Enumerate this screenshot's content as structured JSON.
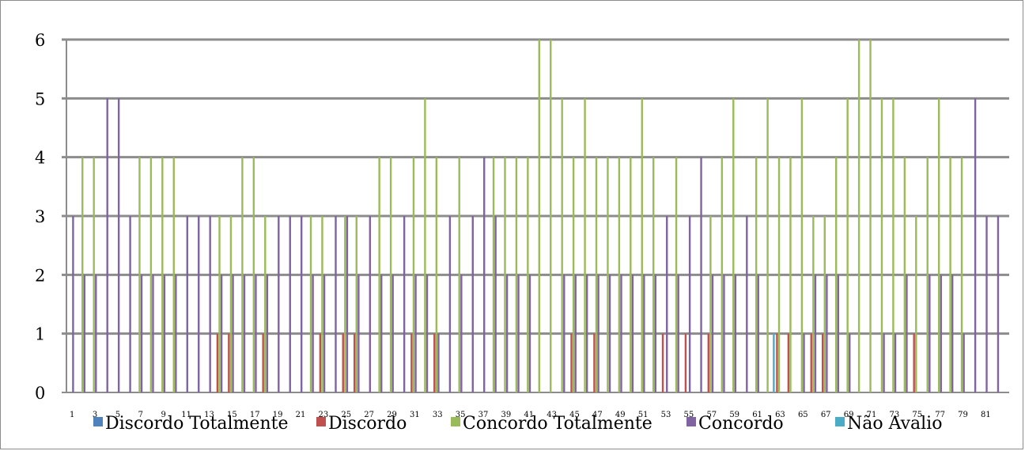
{
  "chart_data": {
    "type": "bar",
    "categories": [
      "1",
      "2",
      "3",
      "4",
      "5",
      "6",
      "7",
      "8",
      "9",
      "10",
      "11",
      "12",
      "13",
      "14",
      "15",
      "16",
      "17",
      "18",
      "19",
      "20",
      "21",
      "22",
      "23",
      "24",
      "25",
      "26",
      "27",
      "28",
      "29",
      "30",
      "31",
      "32",
      "33",
      "34",
      "35",
      "36",
      "37",
      "38",
      "39",
      "40",
      "41",
      "42",
      "43",
      "44",
      "45",
      "46",
      "47",
      "48",
      "49",
      "50",
      "51",
      "52",
      "53",
      "54",
      "55",
      "56",
      "57",
      "58",
      "59",
      "60",
      "61",
      "62",
      "63",
      "64",
      "65",
      "66",
      "67",
      "68",
      "69",
      "70",
      "71",
      "72",
      "73",
      "74",
      "75",
      "76",
      "77",
      "78",
      "79",
      "80",
      "81",
      "82"
    ],
    "x_tick_labels": [
      "1",
      "3",
      "5",
      "7",
      "9",
      "11",
      "13",
      "15",
      "17",
      "19",
      "21",
      "23",
      "25",
      "27",
      "29",
      "31",
      "33",
      "35",
      "37",
      "39",
      "41",
      "43",
      "45",
      "47",
      "49",
      "51",
      "53",
      "55",
      "57",
      "59",
      "61",
      "63",
      "65",
      "67",
      "69",
      "71",
      "73",
      "75",
      "77",
      "79",
      "81"
    ],
    "ylim": [
      0,
      6
    ],
    "y_ticks": [
      0,
      1,
      2,
      3,
      4,
      5,
      6
    ],
    "grid": true,
    "legend_position": "bottom",
    "series": [
      {
        "name": "Discordo Totalmente",
        "color": "#4f81bd",
        "values": [
          0,
          0,
          0,
          0,
          0,
          0,
          0,
          0,
          0,
          0,
          0,
          0,
          0,
          0,
          0,
          0,
          0,
          0,
          0,
          0,
          0,
          0,
          0,
          0,
          0,
          0,
          0,
          0,
          0,
          0,
          0,
          0,
          0,
          0,
          0,
          0,
          0,
          0,
          0,
          0,
          0,
          0,
          0,
          0,
          0,
          0,
          0,
          0,
          0,
          0,
          0,
          0,
          0,
          0,
          0,
          0,
          0,
          0,
          0,
          0,
          0,
          0,
          0,
          0,
          0,
          0,
          0,
          0,
          0,
          0,
          0,
          0,
          0,
          0,
          0,
          0,
          0,
          0,
          0,
          0,
          0,
          0
        ]
      },
      {
        "name": "Discordo",
        "color": "#c0504d",
        "values": [
          0,
          0,
          0,
          0,
          0,
          0,
          0,
          0,
          0,
          0,
          0,
          0,
          0,
          1,
          1,
          0,
          0,
          1,
          0,
          0,
          0,
          0,
          1,
          0,
          1,
          1,
          0,
          0,
          0,
          0,
          1,
          0,
          1,
          0,
          0,
          0,
          0,
          0,
          0,
          0,
          0,
          0,
          0,
          0,
          1,
          0,
          1,
          0,
          0,
          0,
          0,
          0,
          1,
          0,
          1,
          0,
          1,
          0,
          0,
          0,
          0,
          0,
          1,
          1,
          0,
          1,
          1,
          0,
          0,
          0,
          0,
          0,
          0,
          0,
          1,
          0,
          0,
          0,
          0,
          0,
          0,
          0
        ]
      },
      {
        "name": "Concordo Totalmente",
        "color": "#9bbb59",
        "values": [
          0,
          4,
          4,
          0,
          0,
          0,
          4,
          4,
          4,
          4,
          0,
          0,
          0,
          3,
          3,
          4,
          4,
          3,
          0,
          0,
          0,
          3,
          3,
          0,
          3,
          3,
          0,
          4,
          4,
          0,
          4,
          5,
          4,
          0,
          4,
          0,
          0,
          4,
          4,
          4,
          4,
          6,
          6,
          5,
          4,
          5,
          4,
          4,
          4,
          4,
          5,
          4,
          0,
          4,
          0,
          0,
          3,
          4,
          5,
          0,
          4,
          5,
          4,
          4,
          5,
          3,
          3,
          4,
          5,
          6,
          6,
          5,
          5,
          4,
          3,
          4,
          5,
          4,
          4,
          0,
          0,
          0
        ]
      },
      {
        "name": "Concordo",
        "color": "#8064a2",
        "values": [
          3,
          2,
          2,
          5,
          5,
          3,
          2,
          2,
          2,
          2,
          3,
          3,
          3,
          2,
          2,
          2,
          2,
          2,
          3,
          3,
          3,
          2,
          2,
          3,
          3,
          2,
          3,
          2,
          2,
          3,
          2,
          2,
          1,
          3,
          2,
          3,
          4,
          3,
          2,
          2,
          2,
          0,
          0,
          2,
          2,
          2,
          2,
          2,
          2,
          2,
          2,
          2,
          3,
          2,
          3,
          4,
          2,
          2,
          2,
          3,
          2,
          0,
          0,
          0,
          1,
          2,
          2,
          2,
          1,
          0,
          0,
          1,
          1,
          2,
          0,
          2,
          2,
          2,
          1,
          5,
          3,
          3
        ]
      },
      {
        "name": "Não Avalio",
        "color": "#4bacc6",
        "values": [
          0,
          0,
          0,
          0,
          0,
          0,
          0,
          0,
          0,
          0,
          0,
          0,
          0,
          0,
          0,
          0,
          0,
          0,
          0,
          0,
          0,
          0,
          0,
          0,
          0,
          0,
          0,
          0,
          0,
          0,
          0,
          0,
          0,
          0,
          0,
          0,
          0,
          0,
          0,
          0,
          0,
          0,
          0,
          0,
          0,
          0,
          0,
          0,
          0,
          0,
          0,
          0,
          0,
          0,
          0,
          0,
          0,
          0,
          0,
          0,
          0,
          1,
          0,
          0,
          0,
          0,
          0,
          0,
          0,
          0,
          0,
          0,
          0,
          0,
          0,
          0,
          0,
          0,
          0,
          0,
          0,
          0
        ]
      }
    ]
  }
}
